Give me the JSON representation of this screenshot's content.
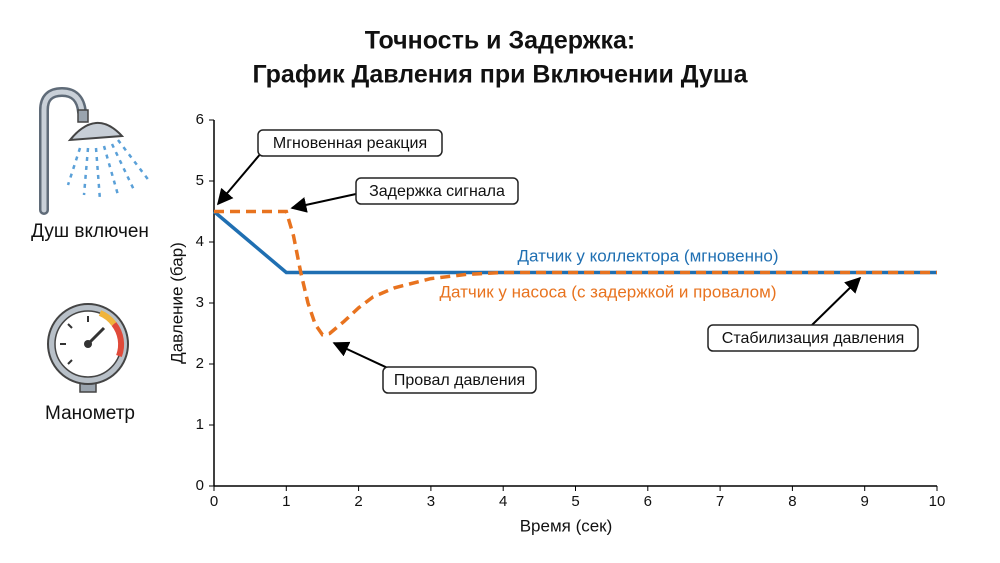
{
  "chart_data": {
    "type": "line",
    "title": "Точность и Задержка:",
    "subtitle": "График Давления при Включении Душа",
    "x_label": "Время (сек)",
    "y_label": "Давление (бар)",
    "xlim": [
      0,
      10
    ],
    "xticks": [
      0,
      1,
      2,
      3,
      4,
      5,
      6,
      7,
      8,
      9,
      10
    ],
    "ylim": [
      0,
      6
    ],
    "yticks": [
      0,
      1,
      2,
      3,
      4,
      5,
      6
    ],
    "grid": false,
    "series": [
      {
        "name": "Датчик у коллектора (мгновенно)",
        "color": "#1f6fb2",
        "dashed": false,
        "x": [
          0,
          1,
          10
        ],
        "values": [
          4.5,
          3.5,
          3.5
        ]
      },
      {
        "name": "Датчик у насоса (с задержкой и провалом)",
        "color": "#e8731f",
        "dashed": true,
        "x": [
          0,
          1,
          1.1,
          1.2,
          1.3,
          1.4,
          1.5,
          1.6,
          1.8,
          2.0,
          2.2,
          2.5,
          3,
          3.5,
          4,
          10
        ],
        "values": [
          4.5,
          4.5,
          4.1,
          3.5,
          3.0,
          2.65,
          2.48,
          2.5,
          2.7,
          2.92,
          3.1,
          3.25,
          3.4,
          3.47,
          3.5,
          3.5
        ]
      }
    ],
    "annotations": [
      "Мгновенная реакция",
      "Задержка сигнала",
      "Провал давления",
      "Стабилизация давления"
    ]
  },
  "side_icons": [
    "Душ включен",
    "Манометр"
  ]
}
